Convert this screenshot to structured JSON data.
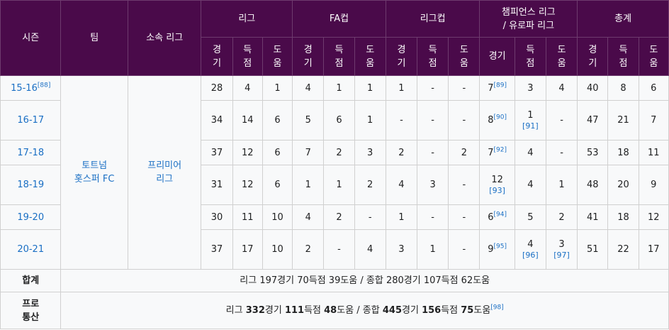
{
  "headers": {
    "season": "시즌",
    "team": "팀",
    "league_name": "소속 리그",
    "league": "리그",
    "facup": "FA컵",
    "leaguecup": "리그컵",
    "europe_line1": "챔피언스 리그",
    "europe_line2": "/ 유로파 리그",
    "total": "총계",
    "apps": "경기",
    "apps_l1": "경",
    "apps_l2": "기",
    "goals_l1": "득",
    "goals_l2": "점",
    "assists_l1": "도",
    "assists_l2": "움"
  },
  "team": {
    "line1": "토트넘",
    "line2": "홋스퍼 FC"
  },
  "league_name": {
    "line1": "프리미어",
    "line2": "리그"
  },
  "rows": [
    {
      "season": "15-16",
      "season_ref": "[88]",
      "l_a": "28",
      "l_g": "4",
      "l_as": "1",
      "fa_a": "4",
      "fa_g": "1",
      "fa_as": "1",
      "lc_a": "1",
      "lc_g": "-",
      "lc_as": "-",
      "eu_a": "7",
      "eu_a_ref": "[89]",
      "eu_g": "3",
      "eu_g_ref": "",
      "eu_as": "4",
      "eu_as_ref": "",
      "t_a": "40",
      "t_g": "8",
      "t_as": "6"
    },
    {
      "season": "16-17",
      "season_ref": "",
      "l_a": "34",
      "l_g": "14",
      "l_as": "6",
      "fa_a": "5",
      "fa_g": "6",
      "fa_as": "1",
      "lc_a": "-",
      "lc_g": "-",
      "lc_as": "-",
      "eu_a": "8",
      "eu_a_ref": "[90]",
      "eu_g": "1",
      "eu_g_ref": "[91]",
      "eu_as": "-",
      "eu_as_ref": "",
      "t_a": "47",
      "t_g": "21",
      "t_as": "7"
    },
    {
      "season": "17-18",
      "season_ref": "",
      "l_a": "37",
      "l_g": "12",
      "l_as": "6",
      "fa_a": "7",
      "fa_g": "2",
      "fa_as": "3",
      "lc_a": "2",
      "lc_g": "-",
      "lc_as": "2",
      "eu_a": "7",
      "eu_a_ref": "[92]",
      "eu_g": "4",
      "eu_g_ref": "",
      "eu_as": "-",
      "eu_as_ref": "",
      "t_a": "53",
      "t_g": "18",
      "t_as": "11"
    },
    {
      "season": "18-19",
      "season_ref": "",
      "l_a": "31",
      "l_g": "12",
      "l_as": "6",
      "fa_a": "1",
      "fa_g": "1",
      "fa_as": "2",
      "lc_a": "4",
      "lc_g": "3",
      "lc_as": "-",
      "eu_a": "12",
      "eu_a_ref": "[93]",
      "eu_g": "4",
      "eu_g_ref": "",
      "eu_as": "1",
      "eu_as_ref": "",
      "t_a": "48",
      "t_g": "20",
      "t_as": "9"
    },
    {
      "season": "19-20",
      "season_ref": "",
      "l_a": "30",
      "l_g": "11",
      "l_as": "10",
      "fa_a": "4",
      "fa_g": "2",
      "fa_as": "-",
      "lc_a": "1",
      "lc_g": "-",
      "lc_as": "-",
      "eu_a": "6",
      "eu_a_ref": "[94]",
      "eu_g": "5",
      "eu_g_ref": "",
      "eu_as": "2",
      "eu_as_ref": "",
      "t_a": "41",
      "t_g": "18",
      "t_as": "12"
    },
    {
      "season": "20-21",
      "season_ref": "",
      "l_a": "37",
      "l_g": "17",
      "l_as": "10",
      "fa_a": "2",
      "fa_g": "-",
      "fa_as": "4",
      "lc_a": "3",
      "lc_g": "1",
      "lc_as": "-",
      "eu_a": "9",
      "eu_a_ref": "[95]",
      "eu_g": "4",
      "eu_g_ref": "[96]",
      "eu_as": "3",
      "eu_as_ref": "[97]",
      "t_a": "51",
      "t_g": "22",
      "t_as": "17"
    }
  ],
  "total": {
    "label": "합계",
    "text": "리그 197경기 70득점 39도움 / 종합 280경기 107득점 62도움"
  },
  "pro": {
    "label_line1": "프로",
    "label_line2": "통산",
    "p1": "리그 ",
    "v1": "332",
    "p2": "경기 ",
    "v2": "111",
    "p3": "득점 ",
    "v3": "48",
    "p4": "도움 / 종합 ",
    "v4": "445",
    "p5": "경기 ",
    "v5": "156",
    "p6": "득점 ",
    "v6": "75",
    "p7": "도움",
    "ref": "[98]"
  },
  "colors": {
    "header_bg": "#4a0a4a",
    "link": "#1a6fc4",
    "cell_bg": "#f8f9fa"
  }
}
